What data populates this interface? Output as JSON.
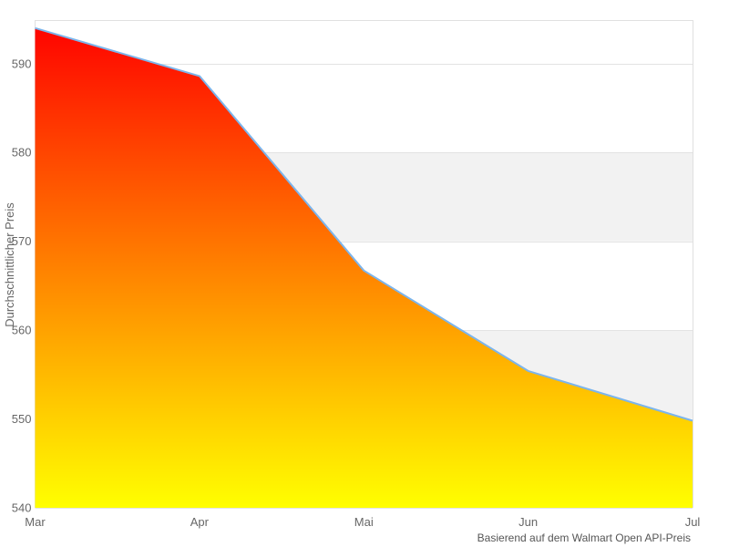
{
  "chart_data": {
    "type": "area",
    "categories": [
      "Mar",
      "Apr",
      "Mai",
      "Jun",
      "Jul"
    ],
    "values": [
      594,
      588.6,
      566.7,
      555.4,
      549.8
    ],
    "title": "",
    "xlabel": "",
    "ylabel": "Durchschnittlicher Preis",
    "credits": "Basierend auf dem Walmart Open API-Preis",
    "ylim": [
      540,
      594.9
    ],
    "yticks": [
      540,
      550,
      560,
      570,
      580,
      590
    ],
    "grid": true,
    "legend": "none",
    "alternating_bands": [
      [
        550,
        560
      ],
      [
        570,
        580
      ]
    ],
    "colors": {
      "line": "#7cb5ec",
      "area_gradient_top": "#ff0000",
      "area_gradient_bottom": "#ffff00",
      "band": "#f2f2f2",
      "gridline": "#e3e3e3",
      "plot_border": "#e0e0e0",
      "tick_label": "#666666"
    }
  }
}
